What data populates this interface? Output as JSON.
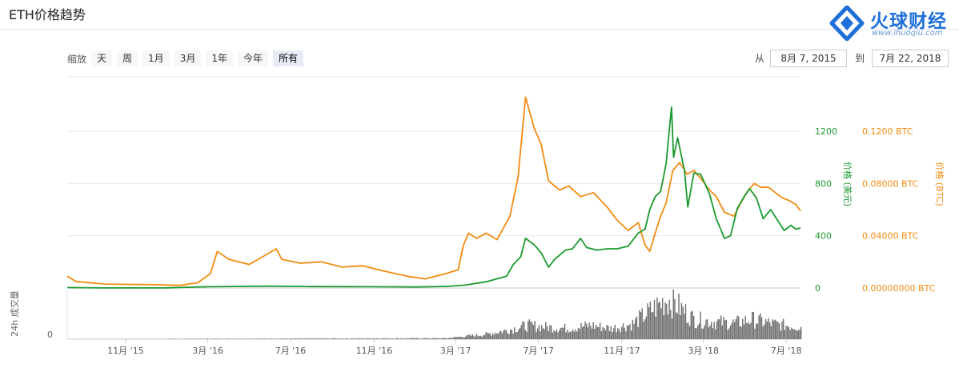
{
  "page": {
    "title": "ETH价格趋势"
  },
  "logo": {
    "name": "火球财经",
    "url_text": "www.ihuoqiu.com",
    "color": "#1e6fd9"
  },
  "zoom": {
    "label": "缩放",
    "options": [
      "天",
      "周",
      "1月",
      "3月",
      "1年",
      "今年",
      "所有"
    ],
    "selected": "所有"
  },
  "range": {
    "from_label": "从",
    "from_value": "8月 7, 2015",
    "to_label": "到",
    "to_value": "7月 22, 2018"
  },
  "colors": {
    "usd": "#1b9a2e",
    "btc": "#f28b12",
    "volume": "#6e6e6e",
    "grid": "#e8e8e8"
  },
  "chart_data": {
    "type": "line",
    "x_ticks": [
      "11月 '15",
      "3月 '16",
      "7月 '16",
      "11月 '16",
      "3月 '17",
      "7月 '17",
      "11月 '17",
      "3月 '18",
      "7月 '18"
    ],
    "x_range": [
      "2015-08-07",
      "2018-07-22"
    ],
    "y_left": {
      "label": "价格 (美元)",
      "ticks": [
        "0",
        "400",
        "800",
        "1200"
      ],
      "range": [
        0,
        1200
      ]
    },
    "y_right": {
      "label": "价格 (BTC)",
      "ticks": [
        "0.00000000 BTC",
        "0.04000 BTC",
        "0.08000 BTC",
        "0.1200 BTC"
      ],
      "range": [
        0,
        0.12
      ]
    },
    "volume_axis": {
      "label": "24h 成交量",
      "ticks": [
        "0"
      ]
    },
    "series": [
      {
        "name": "价格 (美元)",
        "axis": "left",
        "points": [
          [
            "2015-08-07",
            2.8
          ],
          [
            "2015-10-01",
            0.7
          ],
          [
            "2016-01-01",
            1
          ],
          [
            "2016-03-01",
            10
          ],
          [
            "2016-06-01",
            14
          ],
          [
            "2016-08-01",
            11
          ],
          [
            "2016-11-01",
            10
          ],
          [
            "2017-01-01",
            8
          ],
          [
            "2017-02-15",
            12
          ],
          [
            "2017-03-15",
            22
          ],
          [
            "2017-04-15",
            48
          ],
          [
            "2017-05-15",
            90
          ],
          [
            "2017-05-25",
            180
          ],
          [
            "2017-06-05",
            240
          ],
          [
            "2017-06-12",
            380
          ],
          [
            "2017-06-25",
            330
          ],
          [
            "2017-07-05",
            270
          ],
          [
            "2017-07-16",
            160
          ],
          [
            "2017-07-25",
            220
          ],
          [
            "2017-08-10",
            290
          ],
          [
            "2017-08-20",
            300
          ],
          [
            "2017-09-01",
            380
          ],
          [
            "2017-09-10",
            310
          ],
          [
            "2017-09-25",
            290
          ],
          [
            "2017-10-10",
            300
          ],
          [
            "2017-10-25",
            300
          ],
          [
            "2017-11-10",
            320
          ],
          [
            "2017-11-25",
            420
          ],
          [
            "2017-12-05",
            450
          ],
          [
            "2017-12-12",
            600
          ],
          [
            "2017-12-20",
            700
          ],
          [
            "2017-12-28",
            740
          ],
          [
            "2018-01-05",
            950
          ],
          [
            "2018-01-10",
            1220
          ],
          [
            "2018-01-13",
            1385
          ],
          [
            "2018-01-16",
            1000
          ],
          [
            "2018-01-22",
            1150
          ],
          [
            "2018-02-01",
            900
          ],
          [
            "2018-02-06",
            620
          ],
          [
            "2018-02-15",
            880
          ],
          [
            "2018-02-25",
            870
          ],
          [
            "2018-03-10",
            720
          ],
          [
            "2018-03-20",
            530
          ],
          [
            "2018-04-01",
            380
          ],
          [
            "2018-04-10",
            400
          ],
          [
            "2018-04-20",
            610
          ],
          [
            "2018-04-30",
            700
          ],
          [
            "2018-05-08",
            760
          ],
          [
            "2018-05-18",
            690
          ],
          [
            "2018-05-28",
            530
          ],
          [
            "2018-06-08",
            600
          ],
          [
            "2018-06-18",
            520
          ],
          [
            "2018-06-28",
            440
          ],
          [
            "2018-07-08",
            480
          ],
          [
            "2018-07-15",
            450
          ],
          [
            "2018-07-22",
            460
          ]
        ]
      },
      {
        "name": "价格 (BTC)",
        "axis": "right",
        "points": [
          [
            "2015-08-07",
            0.009
          ],
          [
            "2015-08-20",
            0.005
          ],
          [
            "2015-10-01",
            0.003
          ],
          [
            "2015-12-15",
            0.0025
          ],
          [
            "2016-01-20",
            0.002
          ],
          [
            "2016-02-15",
            0.004
          ],
          [
            "2016-03-05",
            0.011
          ],
          [
            "2016-03-15",
            0.028
          ],
          [
            "2016-04-01",
            0.022
          ],
          [
            "2016-05-01",
            0.018
          ],
          [
            "2016-06-10",
            0.03
          ],
          [
            "2016-06-18",
            0.022
          ],
          [
            "2016-07-15",
            0.019
          ],
          [
            "2016-08-15",
            0.02
          ],
          [
            "2016-09-15",
            0.016
          ],
          [
            "2016-10-15",
            0.017
          ],
          [
            "2016-11-15",
            0.013
          ],
          [
            "2016-12-20",
            0.009
          ],
          [
            "2017-01-15",
            0.007
          ],
          [
            "2017-02-15",
            0.011
          ],
          [
            "2017-03-05",
            0.014
          ],
          [
            "2017-03-12",
            0.032
          ],
          [
            "2017-03-20",
            0.042
          ],
          [
            "2017-04-01",
            0.038
          ],
          [
            "2017-04-15",
            0.042
          ],
          [
            "2017-05-01",
            0.037
          ],
          [
            "2017-05-20",
            0.055
          ],
          [
            "2017-06-01",
            0.085
          ],
          [
            "2017-06-12",
            0.146
          ],
          [
            "2017-06-25",
            0.122
          ],
          [
            "2017-07-05",
            0.11
          ],
          [
            "2017-07-16",
            0.082
          ],
          [
            "2017-08-01",
            0.075
          ],
          [
            "2017-08-15",
            0.078
          ],
          [
            "2017-09-01",
            0.07
          ],
          [
            "2017-09-20",
            0.073
          ],
          [
            "2017-10-10",
            0.062
          ],
          [
            "2017-10-25",
            0.052
          ],
          [
            "2017-11-10",
            0.044
          ],
          [
            "2017-11-25",
            0.05
          ],
          [
            "2017-12-05",
            0.033
          ],
          [
            "2017-12-12",
            0.028
          ],
          [
            "2017-12-20",
            0.042
          ],
          [
            "2017-12-28",
            0.055
          ],
          [
            "2018-01-05",
            0.065
          ],
          [
            "2018-01-15",
            0.09
          ],
          [
            "2018-01-25",
            0.096
          ],
          [
            "2018-02-05",
            0.087
          ],
          [
            "2018-02-15",
            0.09
          ],
          [
            "2018-02-25",
            0.084
          ],
          [
            "2018-03-10",
            0.075
          ],
          [
            "2018-03-20",
            0.07
          ],
          [
            "2018-04-01",
            0.058
          ],
          [
            "2018-04-15",
            0.055
          ],
          [
            "2018-04-25",
            0.065
          ],
          [
            "2018-05-05",
            0.074
          ],
          [
            "2018-05-15",
            0.08
          ],
          [
            "2018-05-25",
            0.077
          ],
          [
            "2018-06-05",
            0.077
          ],
          [
            "2018-06-15",
            0.073
          ],
          [
            "2018-06-25",
            0.069
          ],
          [
            "2018-07-05",
            0.067
          ],
          [
            "2018-07-15",
            0.064
          ],
          [
            "2018-07-22",
            0.059
          ]
        ]
      }
    ],
    "volume": {
      "points": [
        [
          "2015-08-07",
          0
        ],
        [
          "2017-02-15",
          2
        ],
        [
          "2017-03-15",
          6
        ],
        [
          "2017-04-15",
          10
        ],
        [
          "2017-05-15",
          18
        ],
        [
          "2017-06-15",
          28
        ],
        [
          "2017-07-15",
          24
        ],
        [
          "2017-08-15",
          22
        ],
        [
          "2017-09-15",
          28
        ],
        [
          "2017-10-15",
          22
        ],
        [
          "2017-11-15",
          30
        ],
        [
          "2017-12-15",
          60
        ],
        [
          "2018-01-05",
          80
        ],
        [
          "2018-01-15",
          75
        ],
        [
          "2018-02-01",
          55
        ],
        [
          "2018-02-15",
          40
        ],
        [
          "2018-03-15",
          35
        ],
        [
          "2018-04-15",
          32
        ],
        [
          "2018-05-10",
          40
        ],
        [
          "2018-06-15",
          30
        ],
        [
          "2018-07-22",
          25
        ]
      ],
      "max": 100
    }
  }
}
